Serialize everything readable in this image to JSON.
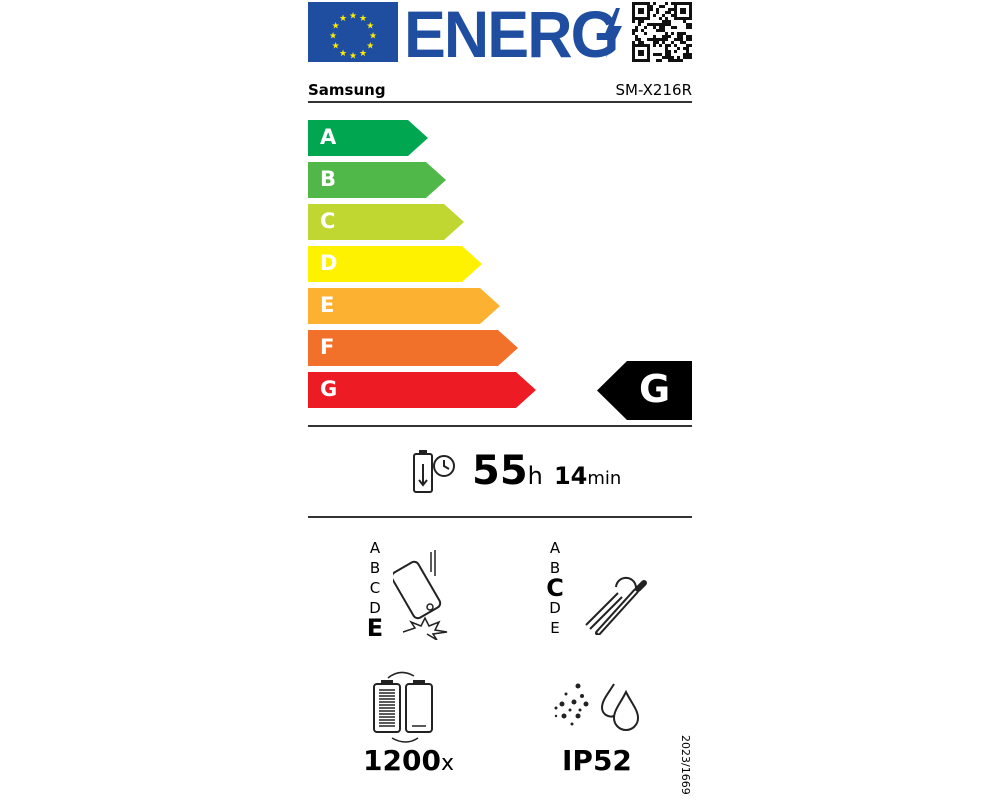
{
  "header": {
    "logo_text": "ENERG",
    "brand": "Samsung",
    "model": "SM-X216R"
  },
  "scale": {
    "classes": [
      {
        "letter": "A",
        "color": "#00a650"
      },
      {
        "letter": "B",
        "color": "#4fb848"
      },
      {
        "letter": "C",
        "color": "#bfd730"
      },
      {
        "letter": "D",
        "color": "#fff200"
      },
      {
        "letter": "E",
        "color": "#fcb131"
      },
      {
        "letter": "F",
        "color": "#f1712a"
      },
      {
        "letter": "G",
        "color": "#ed1c24"
      }
    ],
    "rating": "G"
  },
  "battery_life": {
    "hours": "55",
    "hours_unit": "h",
    "minutes": "14",
    "minutes_unit": "min"
  },
  "drop_resistance": {
    "classes": [
      "A",
      "B",
      "C",
      "D",
      "E"
    ],
    "rating": "E"
  },
  "repairability": {
    "classes": [
      "A",
      "B",
      "C",
      "D",
      "E"
    ],
    "rating": "C"
  },
  "battery_cycles": {
    "value": "1200",
    "unit": "x"
  },
  "ingress_protection": {
    "value": "IP52"
  },
  "regulation": "2023/1669"
}
